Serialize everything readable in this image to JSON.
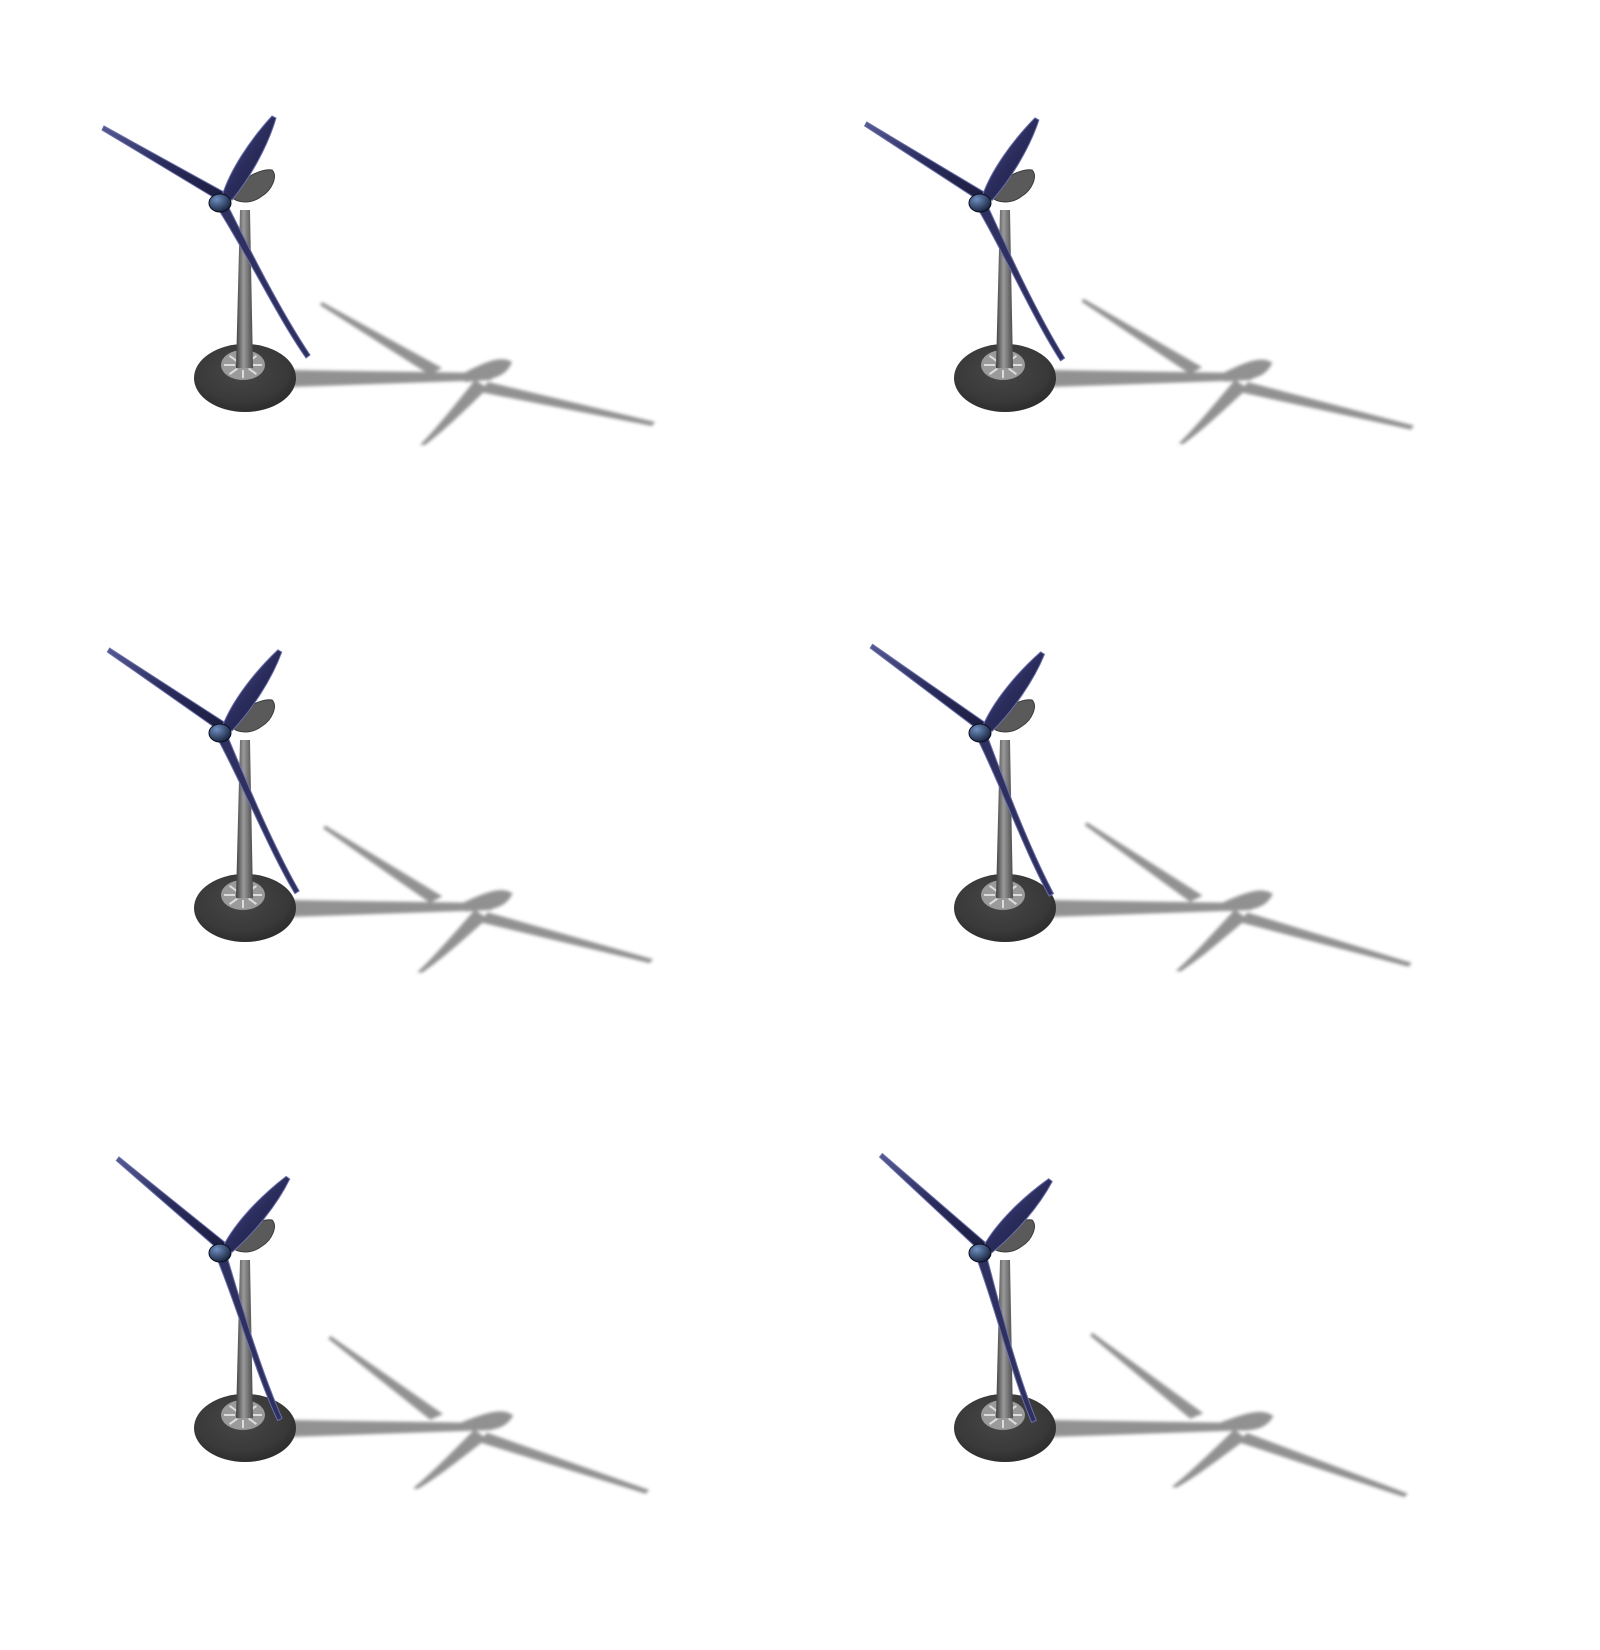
{
  "sprite_sheet": {
    "background": "#ffffff",
    "columns": 2,
    "rows": 3,
    "frames": [
      {
        "rotor_angle_deg": 0
      },
      {
        "rotor_angle_deg": 2
      },
      {
        "rotor_angle_deg": 4
      },
      {
        "rotor_angle_deg": 6
      },
      {
        "rotor_angle_deg": 10
      },
      {
        "rotor_angle_deg": 12
      }
    ],
    "colors": {
      "blade": "#2e3060",
      "blade_edge": "#6b6fa8",
      "tower": "#5a5a5a",
      "tower_light": "#8a8a8a",
      "base": "#3a3a3a",
      "base_inner": "#9a9a9a",
      "shadow": "#8c8c8c",
      "hub": "#1d2a4a"
    }
  }
}
